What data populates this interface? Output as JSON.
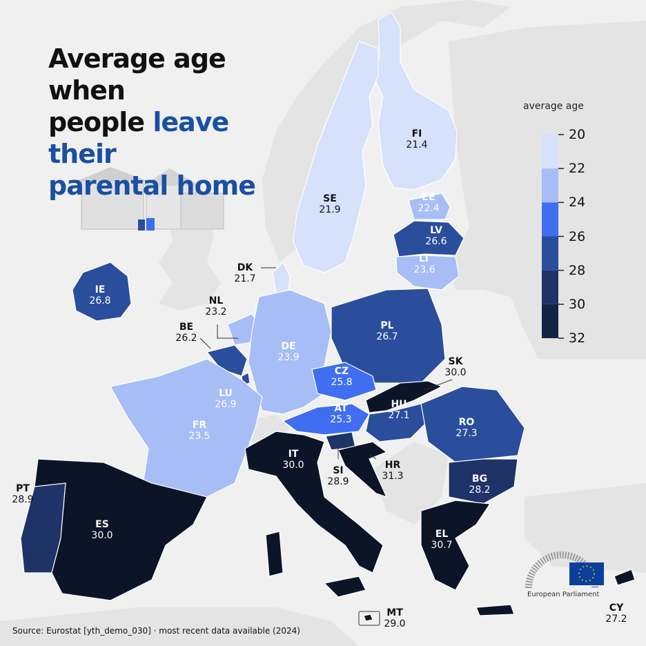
{
  "title": {
    "line1": "Average age when",
    "line2_plain": "people ",
    "line2_highlight": "leave their",
    "line3_highlight": "parental home"
  },
  "legend": {
    "title": "average age",
    "ticks": [
      "20",
      "22",
      "24",
      "26",
      "28",
      "30",
      "32"
    ],
    "colors": [
      "#d6e1fb",
      "#a7bdf5",
      "#3f6ff0",
      "#2a4d9c",
      "#1e3367",
      "#132445",
      "#0b1527"
    ]
  },
  "source": "Source: Eurostat [yth_demo_030]  ·  most recent data available (2024)",
  "logo": {
    "label": "European Parliament"
  },
  "colors": {
    "title_highlight": "#1a4fa3",
    "background_land": "#e4e4e4",
    "water": "#f0f0f0"
  },
  "countries": [
    {
      "code": "FI",
      "value": "21.4"
    },
    {
      "code": "SE",
      "value": "21.9"
    },
    {
      "code": "EE",
      "value": "22.4"
    },
    {
      "code": "LV",
      "value": "26.6"
    },
    {
      "code": "LT",
      "value": "23.6"
    },
    {
      "code": "DK",
      "value": "21.7"
    },
    {
      "code": "IE",
      "value": "26.8"
    },
    {
      "code": "NL",
      "value": "23.2"
    },
    {
      "code": "BE",
      "value": "26.2"
    },
    {
      "code": "DE",
      "value": "23.9"
    },
    {
      "code": "PL",
      "value": "26.7"
    },
    {
      "code": "CZ",
      "value": "25.8"
    },
    {
      "code": "SK",
      "value": "30.0"
    },
    {
      "code": "LU",
      "value": "26.9"
    },
    {
      "code": "AT",
      "value": "25.3"
    },
    {
      "code": "HU",
      "value": "27.1"
    },
    {
      "code": "RO",
      "value": "27.3"
    },
    {
      "code": "FR",
      "value": "23.5"
    },
    {
      "code": "IT",
      "value": "30.0"
    },
    {
      "code": "SI",
      "value": "28.9"
    },
    {
      "code": "HR",
      "value": "31.3"
    },
    {
      "code": "BG",
      "value": "28.2"
    },
    {
      "code": "PT",
      "value": "28.9"
    },
    {
      "code": "ES",
      "value": "30.0"
    },
    {
      "code": "EL",
      "value": "30.7"
    },
    {
      "code": "MT",
      "value": "29.0"
    },
    {
      "code": "CY",
      "value": "27.2"
    }
  ]
}
